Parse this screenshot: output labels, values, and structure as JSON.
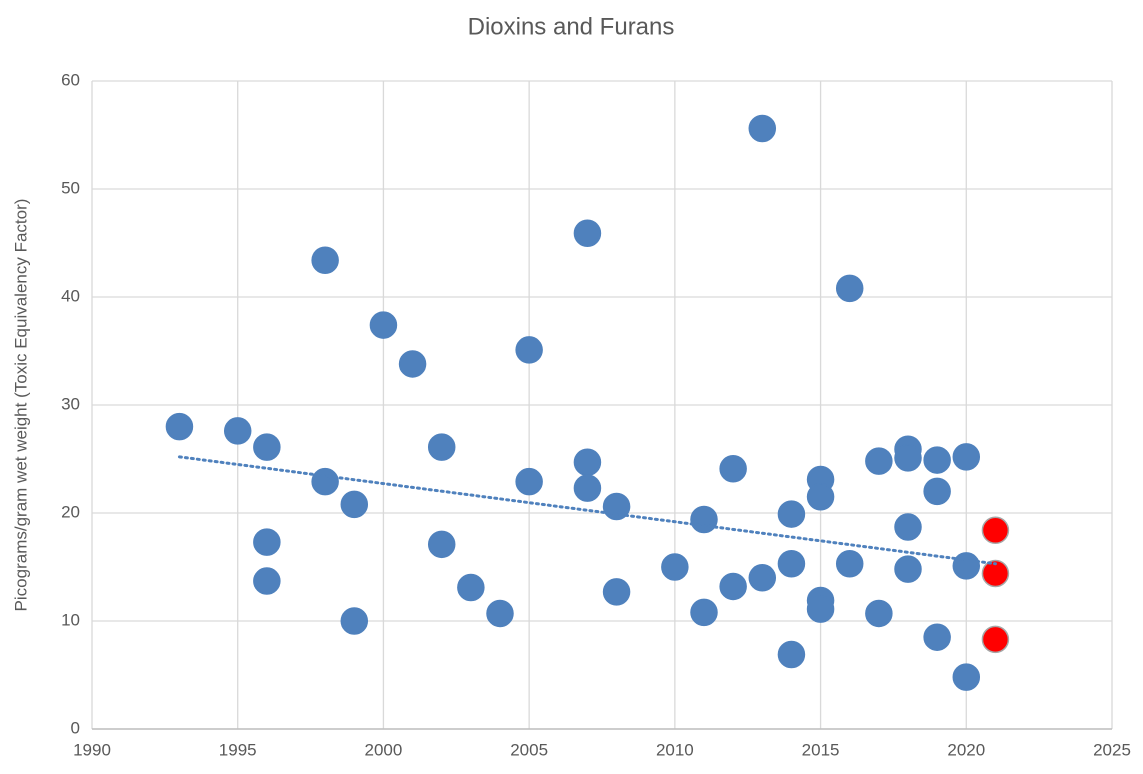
{
  "chart_data": {
    "type": "scatter",
    "title": "Dioxins and Furans",
    "y_label": "Picograms/gram wet weight (Toxic Equivalency Factor)",
    "xlim": [
      1990,
      2025
    ],
    "xticks": [
      1990,
      1995,
      2000,
      2005,
      2010,
      2015,
      2020,
      2025
    ],
    "ylim": [
      0,
      60
    ],
    "yticks": [
      0,
      10,
      20,
      30,
      40,
      50,
      60
    ],
    "grid": true,
    "series": [
      {
        "color": "#4f81bd",
        "x": [
          1993,
          1995,
          1996,
          1996,
          1996,
          1998,
          1998,
          1999,
          1999,
          2000,
          2001,
          2002,
          2002,
          2003,
          2004,
          2005,
          2005,
          2007,
          2007,
          2007,
          2008,
          2008,
          2010,
          2011,
          2011,
          2012,
          2012,
          2013,
          2013,
          2014,
          2014,
          2014,
          2015,
          2015,
          2015,
          2015,
          2016,
          2016,
          2017,
          2017,
          2018,
          2018,
          2018,
          2018,
          2019,
          2019,
          2019,
          2020,
          2020,
          2020
        ],
        "values": [
          28.0,
          27.6,
          26.1,
          17.3,
          13.7,
          43.4,
          22.9,
          20.8,
          10.0,
          37.4,
          33.8,
          26.1,
          17.1,
          13.1,
          10.7,
          35.1,
          22.9,
          45.9,
          24.7,
          22.3,
          20.6,
          12.7,
          15.0,
          19.4,
          10.8,
          24.1,
          13.2,
          55.6,
          14.0,
          19.9,
          15.3,
          6.9,
          23.1,
          21.5,
          11.9,
          11.1,
          40.8,
          15.3,
          24.8,
          10.7,
          25.9,
          25.1,
          18.7,
          14.8,
          24.9,
          22.0,
          8.5,
          25.2,
          15.1,
          4.8
        ]
      },
      {
        "color": "#ff0000",
        "x": [
          2021,
          2021,
          2021
        ],
        "values": [
          18.4,
          14.4,
          8.3
        ]
      }
    ],
    "trendline": {
      "color": "#4f81bd",
      "x": [
        1993,
        2021
      ],
      "values": [
        25.2,
        15.3
      ]
    }
  }
}
